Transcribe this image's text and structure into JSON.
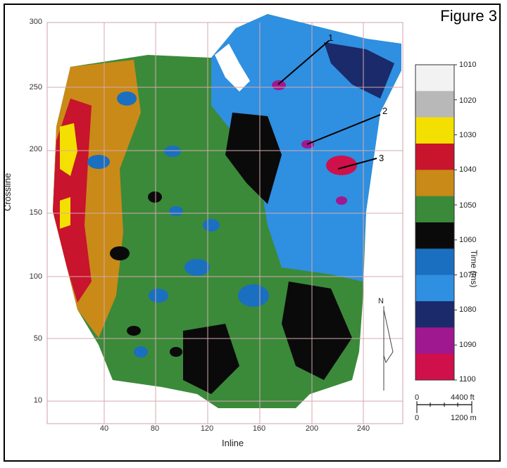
{
  "figure": {
    "title": "Figure 3"
  },
  "axes": {
    "ylabel": "Crossline",
    "xlabel": "Inline",
    "yticks": [
      "300",
      "250",
      "200",
      "150",
      "100",
      "50",
      "10"
    ],
    "xticks": [
      "40",
      "80",
      "120",
      "160",
      "200",
      "240"
    ]
  },
  "colorbar": {
    "label": "Time (ms)",
    "ticks": [
      "1010",
      "1020",
      "1030",
      "1040",
      "1050",
      "1060",
      "1070",
      "1080",
      "1090",
      "1100"
    ],
    "colors": [
      "#f2f2f2",
      "#b8b8b8",
      "#f4e000",
      "#c8142c",
      "#c98a18",
      "#3a8a3a",
      "#0a0a0a",
      "#1a6fc0",
      "#2f8fe0",
      "#1a2a6a",
      "#a01890",
      "#d0104a"
    ]
  },
  "callouts": {
    "one": "1",
    "two": "2",
    "three": "3"
  },
  "scale": {
    "zero_ft": "0",
    "ft": "4400 ft",
    "zero_m": "0",
    "m": "1200 m"
  },
  "north": "N"
}
